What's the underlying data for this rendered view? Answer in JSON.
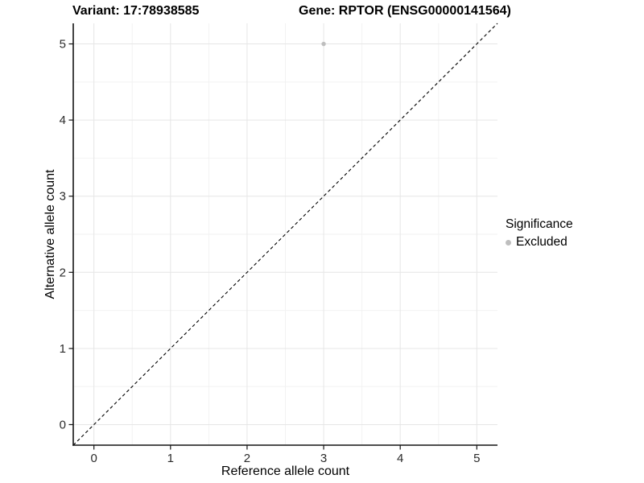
{
  "title": {
    "variant": "Variant: 17:78938585",
    "gene": "Gene: RPTOR (ENSG00000141564)"
  },
  "chart_data": {
    "type": "scatter",
    "title": "Variant: 17:78938585 | Gene: RPTOR (ENSG00000141564)",
    "xlabel": "Reference allele count",
    "ylabel": "Alternative allele count",
    "xlim": [
      -0.27,
      5.27
    ],
    "ylim": [
      -0.27,
      5.27
    ],
    "x_ticks": [
      0,
      1,
      2,
      3,
      4,
      5
    ],
    "y_ticks": [
      0,
      1,
      2,
      3,
      4,
      5
    ],
    "grid": "major+minor",
    "series": [
      {
        "name": "Excluded",
        "color": "#bebebe",
        "points": [
          {
            "x": 3,
            "y": 5
          }
        ]
      }
    ],
    "reference_line": {
      "type": "abline",
      "slope": 1,
      "intercept": 0,
      "style": "dashed",
      "color": "#000000"
    },
    "legend": {
      "title": "Significance",
      "position": "right",
      "items": [
        {
          "label": "Excluded",
          "color": "#bebebe"
        }
      ]
    }
  },
  "colors": {
    "background": "#ffffff",
    "grid_major": "#e6e6e6",
    "grid_minor": "#f2f2f2",
    "axis_line": "#141414",
    "tick_text": "#2b2b2b",
    "point": "#bebebe"
  }
}
